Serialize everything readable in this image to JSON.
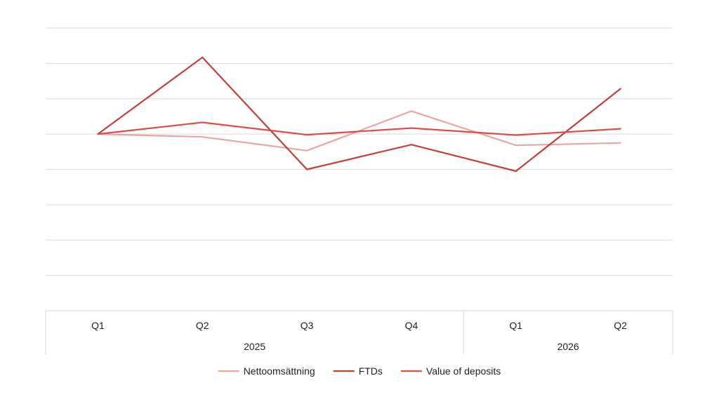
{
  "chart_data": {
    "type": "line",
    "x_groups": [
      {
        "label": "2025",
        "quarters": [
          "Q1",
          "Q2",
          "Q3",
          "Q4"
        ]
      },
      {
        "label": "2026",
        "quarters": [
          "Q1",
          "Q2"
        ]
      }
    ],
    "categories": [
      "Q1 2025",
      "Q2 2025",
      "Q3 2025",
      "Q4 2025",
      "Q1 2026",
      "Q2 2026"
    ],
    "ylim": [
      -5,
      3
    ],
    "grid": true,
    "y_tick_labels_shown": false,
    "legend_position": "bottom",
    "series": [
      {
        "name": "Nettoomsättning",
        "color": "#e8a6a4",
        "values": [
          0,
          -0.08,
          -0.47,
          0.65,
          -0.32,
          -0.25
        ]
      },
      {
        "name": "FTDs",
        "color": "#c0403d",
        "values": [
          0,
          2.17,
          -1.0,
          -0.3,
          -1.05,
          1.28
        ]
      },
      {
        "name": "Value of deposits",
        "color": "#d8504c",
        "values": [
          0,
          0.33,
          -0.02,
          0.17,
          -0.03,
          0.15
        ]
      }
    ]
  }
}
